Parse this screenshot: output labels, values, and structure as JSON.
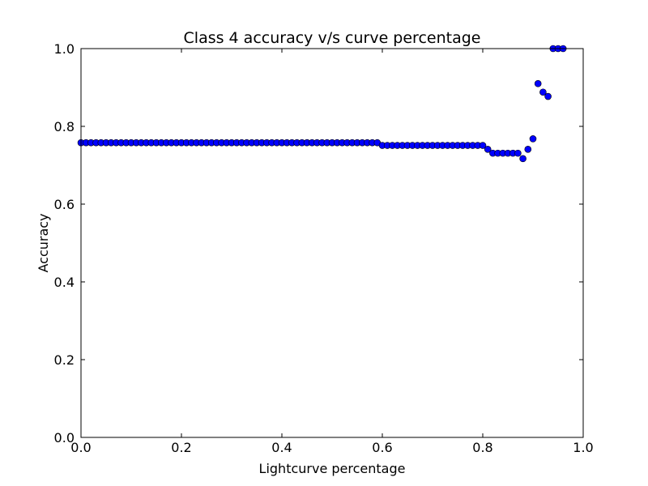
{
  "chart_data": {
    "type": "scatter",
    "title": "Class 4 accuracy v/s curve percentage",
    "xlabel": "Lightcurve percentage",
    "ylabel": "Accuracy",
    "xlim": [
      0.0,
      1.0
    ],
    "ylim": [
      0.0,
      1.0
    ],
    "xticks": [
      "0.0",
      "0.2",
      "0.4",
      "0.6",
      "0.8",
      "1.0"
    ],
    "yticks": [
      "0.0",
      "0.2",
      "0.4",
      "0.6",
      "0.8",
      "1.0"
    ],
    "grid": false,
    "marker_color": "#0000ff",
    "series": [
      {
        "x": [
          0.0,
          0.01,
          0.02,
          0.03,
          0.04,
          0.05,
          0.06,
          0.07,
          0.08,
          0.09,
          0.1,
          0.11,
          0.12,
          0.13,
          0.14,
          0.15,
          0.16,
          0.17,
          0.18,
          0.19,
          0.2,
          0.21,
          0.22,
          0.23,
          0.24,
          0.25,
          0.26,
          0.27,
          0.28,
          0.29,
          0.3,
          0.31,
          0.32,
          0.33,
          0.34,
          0.35,
          0.36,
          0.37,
          0.38,
          0.39,
          0.4,
          0.41,
          0.42,
          0.43,
          0.44,
          0.45,
          0.46,
          0.47,
          0.48,
          0.49,
          0.5,
          0.51,
          0.52,
          0.53,
          0.54,
          0.55,
          0.56,
          0.57,
          0.58,
          0.59,
          0.6,
          0.61,
          0.62,
          0.63,
          0.64,
          0.65,
          0.66,
          0.67,
          0.68,
          0.69,
          0.7,
          0.71,
          0.72,
          0.73,
          0.74,
          0.75,
          0.76,
          0.77,
          0.78,
          0.79,
          0.8,
          0.81,
          0.82,
          0.83,
          0.84,
          0.85,
          0.86,
          0.87,
          0.88,
          0.89,
          0.9,
          0.91,
          0.92,
          0.93,
          0.94,
          0.95,
          0.96
        ],
        "y": [
          0.758,
          0.758,
          0.758,
          0.758,
          0.758,
          0.758,
          0.758,
          0.758,
          0.758,
          0.758,
          0.758,
          0.758,
          0.758,
          0.758,
          0.758,
          0.758,
          0.758,
          0.758,
          0.758,
          0.758,
          0.758,
          0.758,
          0.758,
          0.758,
          0.758,
          0.758,
          0.758,
          0.758,
          0.758,
          0.758,
          0.758,
          0.758,
          0.758,
          0.758,
          0.758,
          0.758,
          0.758,
          0.758,
          0.758,
          0.758,
          0.758,
          0.758,
          0.758,
          0.758,
          0.758,
          0.758,
          0.758,
          0.758,
          0.758,
          0.758,
          0.758,
          0.758,
          0.758,
          0.758,
          0.758,
          0.758,
          0.758,
          0.758,
          0.758,
          0.758,
          0.751,
          0.751,
          0.751,
          0.751,
          0.751,
          0.751,
          0.751,
          0.751,
          0.751,
          0.751,
          0.751,
          0.751,
          0.751,
          0.751,
          0.751,
          0.751,
          0.751,
          0.751,
          0.751,
          0.751,
          0.751,
          0.741,
          0.731,
          0.731,
          0.731,
          0.731,
          0.731,
          0.731,
          0.717,
          0.741,
          0.768,
          0.91,
          0.888,
          0.877,
          1.0,
          1.0,
          1.0
        ]
      }
    ]
  }
}
